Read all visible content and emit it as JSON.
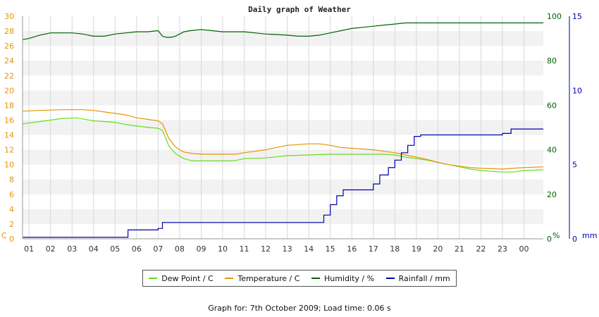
{
  "chart_data": {
    "type": "line",
    "title": "Daily graph of Weather",
    "x_ticks": [
      "01",
      "02",
      "03",
      "04",
      "05",
      "06",
      "07",
      "08",
      "09",
      "10",
      "11",
      "12",
      "13",
      "14",
      "15",
      "16",
      "17",
      "18",
      "19",
      "20",
      "21",
      "22",
      "23",
      "00"
    ],
    "x_range": [
      0.7,
      24.9
    ],
    "left_axis": {
      "unit": "C",
      "range": [
        0,
        30
      ],
      "ticks": [
        "0",
        "2",
        "4",
        "6",
        "8",
        "10",
        "12",
        "14",
        "16",
        "18",
        "20",
        "22",
        "24",
        "26",
        "28",
        "30"
      ],
      "color": "#e69500"
    },
    "right_axis_1": {
      "unit": "%",
      "range": [
        0,
        100
      ],
      "ticks": [
        "0",
        "20",
        "40",
        "60",
        "80",
        "100"
      ],
      "color": "#006400"
    },
    "right_axis_2": {
      "unit": "mm",
      "range": [
        0,
        15
      ],
      "ticks": [
        "0",
        "5",
        "10",
        "15"
      ],
      "color": "#0000aa"
    },
    "series": [
      {
        "name": "Dew Point / C",
        "axis": "left",
        "color": "#66dd22",
        "x": [
          0.7,
          1.5,
          2.5,
          3.2,
          4.0,
          5.0,
          5.5,
          6.0,
          6.6,
          7.0,
          7.2,
          7.5,
          7.8,
          8.2,
          8.6,
          9.0,
          10.0,
          10.5,
          11.0,
          12.0,
          13.0,
          14.0,
          15.0,
          16.0,
          17.0,
          17.5,
          18.0,
          18.5,
          19.0,
          19.5,
          20.0,
          20.5,
          21.0,
          21.5,
          22.0,
          23.0,
          23.5,
          24.0,
          24.9
        ],
        "y": [
          15.5,
          15.8,
          16.2,
          16.3,
          15.9,
          15.7,
          15.4,
          15.2,
          15.0,
          14.9,
          14.6,
          12.5,
          11.5,
          10.8,
          10.5,
          10.5,
          10.5,
          10.5,
          10.8,
          10.9,
          11.2,
          11.3,
          11.4,
          11.4,
          11.4,
          11.4,
          11.3,
          11.0,
          10.8,
          10.6,
          10.3,
          10.0,
          9.7,
          9.4,
          9.2,
          9.0,
          9.0,
          9.2,
          9.3
        ]
      },
      {
        "name": "Temperature / C",
        "axis": "left",
        "color": "#e69500",
        "x": [
          0.7,
          1.5,
          2.5,
          3.5,
          4.0,
          4.5,
          5.0,
          5.5,
          6.0,
          6.5,
          7.0,
          7.2,
          7.5,
          7.8,
          8.0,
          8.2,
          8.6,
          9.0,
          10.0,
          10.6,
          11.0,
          12.0,
          12.5,
          13.0,
          14.0,
          14.5,
          15.0,
          15.5,
          16.0,
          17.0,
          17.5,
          18.0,
          18.5,
          19.0,
          19.5,
          20.0,
          20.5,
          21.0,
          21.5,
          22.0,
          23.0,
          23.5,
          24.0,
          24.9
        ],
        "y": [
          17.2,
          17.3,
          17.4,
          17.4,
          17.3,
          17.1,
          16.9,
          16.7,
          16.3,
          16.1,
          15.9,
          15.5,
          13.5,
          12.4,
          12.0,
          11.7,
          11.5,
          11.4,
          11.4,
          11.4,
          11.6,
          12.0,
          12.3,
          12.6,
          12.8,
          12.8,
          12.6,
          12.3,
          12.2,
          12.0,
          11.8,
          11.6,
          11.3,
          11.0,
          10.7,
          10.3,
          10.0,
          9.8,
          9.6,
          9.5,
          9.4,
          9.5,
          9.6,
          9.7
        ]
      },
      {
        "name": "Humidity / %",
        "axis": "right_1",
        "color": "#006400",
        "x": [
          0.7,
          1.0,
          1.5,
          2.0,
          3.0,
          3.5,
          4.0,
          4.5,
          5.0,
          5.5,
          6.0,
          6.5,
          7.0,
          7.2,
          7.4,
          7.6,
          7.8,
          8.0,
          8.2,
          8.5,
          9.0,
          9.5,
          10.0,
          11.0,
          11.5,
          12.0,
          13.0,
          13.5,
          14.0,
          14.5,
          15.0,
          15.5,
          16.0,
          16.5,
          17.0,
          17.5,
          18.0,
          18.5,
          19.0,
          19.5,
          20.0,
          21.0,
          22.0,
          23.0,
          23.5,
          24.0,
          24.9
        ],
        "y": [
          89.5,
          90.0,
          91.5,
          92.5,
          92.5,
          92.0,
          91.0,
          91.0,
          92.0,
          92.5,
          93.0,
          93.0,
          93.5,
          91.0,
          90.5,
          90.5,
          91.0,
          92.0,
          93.0,
          93.5,
          94.0,
          93.5,
          93.0,
          93.0,
          92.5,
          92.0,
          91.5,
          91.0,
          91.0,
          91.5,
          92.5,
          93.5,
          94.5,
          95.0,
          95.5,
          96.0,
          96.5,
          97.0,
          97.0,
          97.0,
          97.0,
          97.0,
          97.0,
          97.0,
          97.0,
          97.0,
          97.0
        ]
      },
      {
        "name": "Rainfall / mm",
        "axis": "right_2",
        "color": "#0000aa",
        "x": [
          0.7,
          5.4,
          5.6,
          7.0,
          7.2,
          14.5,
          14.7,
          15.0,
          15.3,
          15.6,
          16.6,
          17.0,
          17.3,
          17.7,
          18.0,
          18.3,
          18.6,
          18.9,
          19.2,
          20.0,
          22.0,
          23.0,
          23.4,
          24.9
        ],
        "y": [
          0.1,
          0.1,
          0.6,
          0.7,
          1.1,
          1.1,
          1.6,
          2.3,
          2.9,
          3.3,
          3.3,
          3.7,
          4.3,
          4.8,
          5.3,
          5.8,
          6.3,
          6.9,
          7.0,
          7.0,
          7.0,
          7.1,
          7.4,
          7.4
        ]
      }
    ],
    "legend_position": "bottom",
    "grid": true
  },
  "footer": "Graph for: 7th October 2009; Load time: 0.06 s"
}
